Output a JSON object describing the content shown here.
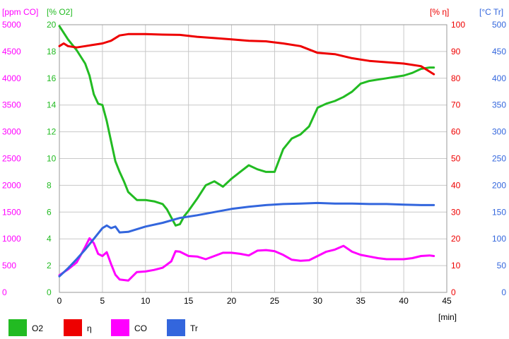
{
  "chart_data": {
    "type": "line",
    "xlabel": "[min]",
    "xlim": [
      0,
      45
    ],
    "x_ticks": [
      0,
      5,
      10,
      15,
      20,
      25,
      30,
      35,
      40,
      45
    ],
    "grid": true,
    "legend_position": "bottom-left",
    "axes": [
      {
        "id": "co",
        "label": "[ppm CO]",
        "color": "#ff00ff",
        "range": [
          0,
          5000
        ],
        "ticks": [
          0,
          500,
          1000,
          1500,
          2000,
          2500,
          3000,
          3500,
          4000,
          4500,
          5000
        ],
        "side": "left-outer"
      },
      {
        "id": "o2",
        "label": "[% O2]",
        "color": "#22bb22",
        "range": [
          0,
          20
        ],
        "ticks": [
          0,
          2,
          4,
          6,
          8,
          10,
          12,
          14,
          16,
          18,
          20
        ],
        "side": "left-inner"
      },
      {
        "id": "eta",
        "label": "[% η]",
        "color": "#ee0000",
        "range": [
          0,
          100
        ],
        "ticks": [
          0,
          10,
          20,
          30,
          40,
          50,
          60,
          70,
          80,
          90,
          100
        ],
        "side": "right-inner"
      },
      {
        "id": "tr",
        "label": "[°C Tr]",
        "color": "#3366dd",
        "range": [
          0,
          500
        ],
        "ticks": [
          0,
          50,
          100,
          150,
          200,
          250,
          300,
          350,
          400,
          450,
          500
        ],
        "side": "right-outer"
      }
    ],
    "series": [
      {
        "name": "O2",
        "axis": "o2",
        "color": "#22bb22",
        "x": [
          0,
          1,
          2,
          3,
          3.5,
          4,
          4.5,
          5,
          5.5,
          6,
          6.5,
          7,
          7.5,
          8,
          9,
          10,
          11,
          12,
          12.5,
          13,
          13.5,
          14,
          14.5,
          15,
          16,
          17,
          18,
          19,
          20,
          21,
          22,
          23,
          24,
          25,
          26,
          27,
          28,
          29,
          30,
          31,
          32,
          33,
          34,
          35,
          36,
          37,
          38,
          39,
          40,
          41,
          42,
          43,
          43.5
        ],
        "y": [
          19.9,
          18.9,
          18.1,
          17.1,
          16.2,
          14.8,
          14.1,
          14.0,
          12.8,
          11.3,
          9.8,
          9.0,
          8.3,
          7.5,
          6.9,
          6.9,
          6.8,
          6.6,
          6.2,
          5.6,
          5.0,
          5.1,
          5.7,
          6.1,
          7.0,
          8.0,
          8.3,
          7.9,
          8.5,
          9.0,
          9.5,
          9.2,
          9.0,
          9.0,
          10.7,
          11.5,
          11.8,
          12.4,
          13.8,
          14.1,
          14.3,
          14.6,
          15.0,
          15.6,
          15.8,
          15.9,
          16.0,
          16.1,
          16.2,
          16.4,
          16.7,
          16.8,
          16.8
        ]
      },
      {
        "name": "η",
        "axis": "eta",
        "color": "#ee0000",
        "x": [
          0,
          0.5,
          1,
          2,
          3,
          4,
          5,
          6,
          7,
          8,
          9,
          10,
          12,
          14,
          16,
          18,
          20,
          22,
          24,
          26,
          28,
          30,
          32,
          34,
          36,
          38,
          40,
          42,
          43.5
        ],
        "y": [
          92,
          93,
          92,
          91.5,
          92,
          92.5,
          93,
          94,
          96,
          96.5,
          96.5,
          96.5,
          96.3,
          96.2,
          95.5,
          95,
          94.5,
          94,
          93.8,
          93,
          92,
          89.5,
          89,
          87.5,
          86.5,
          86,
          85.5,
          84.5,
          81.5
        ]
      },
      {
        "name": "CO",
        "axis": "co",
        "color": "#ff00ff",
        "x": [
          0,
          1,
          2,
          2.5,
          3,
          3.5,
          4,
          4.5,
          5,
          5.5,
          6,
          6.5,
          7,
          8,
          9,
          10,
          11,
          12,
          13,
          13.5,
          14,
          15,
          16,
          17,
          18,
          19,
          20,
          21,
          22,
          23,
          24,
          25,
          26,
          27,
          28,
          29,
          30,
          31,
          32,
          33,
          34,
          35,
          36,
          37,
          38,
          39,
          40,
          41,
          42,
          43,
          43.5
        ],
        "y": [
          320,
          430,
          560,
          700,
          850,
          1010,
          920,
          720,
          680,
          750,
          530,
          330,
          240,
          220,
          380,
          390,
          420,
          460,
          580,
          770,
          760,
          680,
          670,
          620,
          680,
          740,
          740,
          720,
          690,
          780,
          790,
          770,
          700,
          610,
          590,
          600,
          680,
          760,
          800,
          870,
          760,
          700,
          670,
          640,
          620,
          620,
          620,
          640,
          680,
          690,
          680
        ]
      },
      {
        "name": "Tr",
        "axis": "tr",
        "color": "#3366dd",
        "x": [
          0,
          1,
          2,
          3,
          4,
          5,
          5.5,
          6,
          6.5,
          7,
          8,
          9,
          10,
          12,
          14,
          16,
          18,
          20,
          22,
          24,
          26,
          28,
          30,
          32,
          34,
          36,
          38,
          40,
          42,
          43.5
        ],
        "y": [
          30,
          45,
          62,
          80,
          100,
          120,
          125,
          120,
          123,
          112,
          113,
          118,
          123,
          130,
          139,
          144,
          150,
          156,
          160,
          163,
          165,
          166,
          167,
          166,
          166,
          165,
          165,
          164,
          163,
          163
        ]
      }
    ],
    "legend": [
      {
        "name": "O2",
        "color": "#22bb22"
      },
      {
        "name": "η",
        "color": "#ee0000"
      },
      {
        "name": "CO",
        "color": "#ff00ff"
      },
      {
        "name": "Tr",
        "color": "#3366dd"
      }
    ]
  }
}
